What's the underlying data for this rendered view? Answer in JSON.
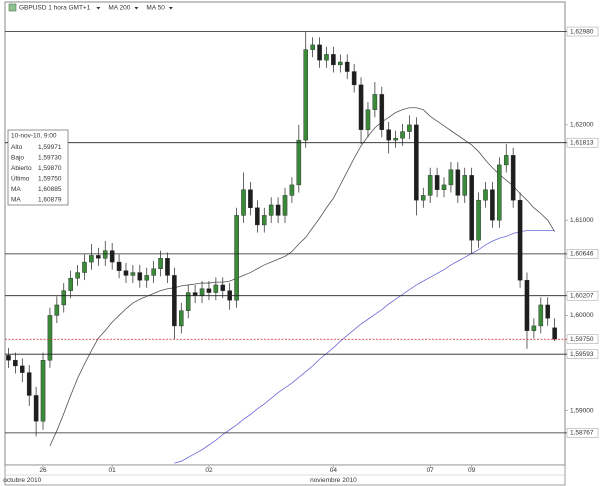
{
  "chart_data": {
    "type": "candlestick",
    "title": "GBPUSD 1 hora GMT+1",
    "ylim": [
      1.5843,
      1.6329
    ],
    "xlim": [
      -0.5,
      80.5
    ],
    "yticks": [
      {
        "value": 1.62,
        "label": "1,62000"
      },
      {
        "value": 1.61,
        "label": "1,61000"
      },
      {
        "value": 1.6,
        "label": "1,60000"
      },
      {
        "value": 1.59,
        "label": "1,59000"
      }
    ],
    "xticks": [
      {
        "value": 5,
        "label": "26"
      },
      {
        "value": 15,
        "label": "01"
      },
      {
        "value": 29,
        "label": "02"
      },
      {
        "value": 47,
        "label": "04"
      },
      {
        "value": 61,
        "label": "07"
      },
      {
        "value": 67,
        "label": "09"
      }
    ],
    "months": [
      {
        "value": 2,
        "label": "octubre 2010"
      },
      {
        "value": 47,
        "label": "noviembre 2010"
      }
    ],
    "levels": [
      {
        "value": 1.6298,
        "label": "1,62980"
      },
      {
        "value": 1.61813,
        "label": "1,61813"
      },
      {
        "value": 1.60646,
        "label": "1,60646"
      },
      {
        "value": 1.60207,
        "label": "1,60207"
      },
      {
        "value": 1.59593,
        "label": "1,59593"
      },
      {
        "value": 1.58767,
        "label": "1,58767"
      }
    ],
    "level_color": "#c0392b",
    "last": {
      "value": 1.5975,
      "label": "1,59750",
      "color": "#2e8b2e",
      "line_color": "#d62020"
    },
    "series": [
      {
        "name": "GBPUSD",
        "up_color": "#3a8a3a",
        "down_color": "#1e1e1e",
        "open": [
          1.5958,
          1.5953,
          1.5947,
          1.594,
          1.5916,
          1.5889,
          1.5953,
          1.6,
          1.6011,
          1.6026,
          1.6039,
          1.6045,
          1.6056,
          1.6063,
          1.606,
          1.6068,
          1.6056,
          1.6047,
          1.6042,
          1.6045,
          1.6037,
          1.6042,
          1.6049,
          1.606,
          1.6042,
          1.5989,
          1.6005,
          1.6024,
          1.6021,
          1.6028,
          1.6024,
          1.6032,
          1.6026,
          1.6016,
          1.6105,
          1.6132,
          1.6113,
          1.6095,
          1.6105,
          1.6116,
          1.6105,
          1.6126,
          1.6137,
          1.6184,
          1.6279,
          1.6284,
          1.6268,
          1.6274,
          1.6263,
          1.6266,
          1.6256,
          1.6242,
          1.6195,
          1.6216,
          1.6232,
          1.6195,
          1.6184,
          1.6186,
          1.6193,
          1.62,
          1.6121,
          1.6126,
          1.6147,
          1.6132,
          1.6137,
          1.6153,
          1.6126,
          1.6147,
          1.6079,
          1.6121,
          1.6132,
          1.61,
          1.6158,
          1.6168,
          1.6121,
          1.6037,
          1.5984,
          1.5989,
          1.6011,
          1.5987
        ],
        "high": [
          1.5966,
          1.5961,
          1.5955,
          1.5948,
          1.5925,
          1.5961,
          1.6008,
          1.602,
          1.6034,
          1.6047,
          1.6053,
          1.6064,
          1.6075,
          1.6071,
          1.6078,
          1.6076,
          1.6064,
          1.6055,
          1.6053,
          1.6053,
          1.605,
          1.6057,
          1.6068,
          1.6066,
          1.605,
          1.6013,
          1.6032,
          1.6032,
          1.6036,
          1.6036,
          1.604,
          1.604,
          1.6034,
          1.6113,
          1.615,
          1.614,
          1.6121,
          1.6113,
          1.6124,
          1.6124,
          1.6134,
          1.6145,
          1.62,
          1.6298,
          1.6292,
          1.6292,
          1.6282,
          1.6282,
          1.6274,
          1.6274,
          1.6264,
          1.625,
          1.6224,
          1.6245,
          1.624,
          1.6203,
          1.6194,
          1.6201,
          1.621,
          1.6208,
          1.6134,
          1.6155,
          1.6155,
          1.6145,
          1.6161,
          1.6161,
          1.6155,
          1.6155,
          1.6129,
          1.614,
          1.614,
          1.6166,
          1.618,
          1.6176,
          1.6129,
          1.6045,
          1.5997,
          1.6019,
          1.6019,
          1.59971
        ],
        "low": [
          1.5945,
          1.5939,
          1.593,
          1.5905,
          1.5873,
          1.588,
          1.5945,
          1.5992,
          1.6003,
          1.6018,
          1.6031,
          1.6037,
          1.6048,
          1.6052,
          1.6052,
          1.6048,
          1.6039,
          1.6034,
          1.6034,
          1.6029,
          1.6029,
          1.6034,
          1.6041,
          1.6034,
          1.5975,
          1.5981,
          1.5997,
          1.6013,
          1.6013,
          1.6016,
          1.6016,
          1.6018,
          1.6006,
          1.6008,
          1.6097,
          1.6105,
          1.6087,
          1.6087,
          1.6097,
          1.6097,
          1.6097,
          1.6118,
          1.6129,
          1.6176,
          1.6271,
          1.626,
          1.626,
          1.6255,
          1.6255,
          1.6248,
          1.6234,
          1.618,
          1.6187,
          1.6208,
          1.6187,
          1.617,
          1.6176,
          1.6178,
          1.6185,
          1.6105,
          1.6113,
          1.6118,
          1.6124,
          1.6124,
          1.6129,
          1.6118,
          1.6118,
          1.6065,
          1.6071,
          1.6113,
          1.6092,
          1.6092,
          1.615,
          1.6113,
          1.6029,
          1.5965,
          1.5976,
          1.5981,
          1.5989,
          1.5973
        ],
        "close": [
          1.5953,
          1.5947,
          1.594,
          1.5916,
          1.5889,
          1.5953,
          1.6,
          1.6011,
          1.6026,
          1.6039,
          1.6045,
          1.6056,
          1.6063,
          1.606,
          1.6068,
          1.6056,
          1.6047,
          1.6042,
          1.6045,
          1.6037,
          1.6042,
          1.6049,
          1.606,
          1.6042,
          1.5989,
          1.6005,
          1.6024,
          1.6021,
          1.6028,
          1.6024,
          1.6032,
          1.6026,
          1.6016,
          1.6105,
          1.6132,
          1.6113,
          1.6095,
          1.6105,
          1.6116,
          1.6105,
          1.6126,
          1.6137,
          1.6184,
          1.6279,
          1.6284,
          1.6268,
          1.6274,
          1.6263,
          1.6266,
          1.6256,
          1.6242,
          1.6195,
          1.6216,
          1.6232,
          1.6195,
          1.6184,
          1.6186,
          1.6193,
          1.62,
          1.6121,
          1.6126,
          1.6147,
          1.6132,
          1.6137,
          1.6153,
          1.6126,
          1.6147,
          1.6079,
          1.6121,
          1.6132,
          1.61,
          1.6158,
          1.6168,
          1.6121,
          1.6037,
          1.5984,
          1.5989,
          1.6011,
          1.5997,
          1.5975
        ]
      }
    ],
    "lines": [
      {
        "name": "MA 200",
        "color": "#6a6ad8",
        "values": [
          null,
          null,
          null,
          null,
          null,
          null,
          null,
          null,
          null,
          null,
          null,
          null,
          null,
          null,
          null,
          null,
          null,
          null,
          null,
          null,
          null,
          null,
          null,
          null,
          1.5845,
          1.5847,
          1.5851,
          1.5855,
          1.5859,
          1.5864,
          1.5869,
          1.5875,
          1.588,
          1.5885,
          1.5891,
          1.5896,
          1.5902,
          1.5907,
          1.5913,
          1.5919,
          1.5924,
          1.5929,
          1.5935,
          1.5941,
          1.5947,
          1.5954,
          1.596,
          1.5966,
          1.5973,
          1.5979,
          1.5985,
          1.5991,
          1.5996,
          1.6001,
          1.6006,
          1.6012,
          1.6017,
          1.6022,
          1.6027,
          1.6032,
          1.6036,
          1.604,
          1.6044,
          1.6048,
          1.6053,
          1.6057,
          1.6061,
          1.6065,
          1.6069,
          1.6074,
          1.6078,
          1.6081,
          1.6083,
          1.6086,
          1.6088,
          1.6089,
          1.6089,
          1.6089,
          1.6089,
          1.6089
        ]
      },
      {
        "name": "MA 50",
        "color": "#555555",
        "values": [
          null,
          null,
          null,
          null,
          null,
          null,
          1.5863,
          1.5879,
          1.5897,
          1.5916,
          1.5934,
          1.5949,
          1.5963,
          1.5976,
          1.5984,
          1.5993,
          1.6,
          1.6007,
          1.6013,
          1.6017,
          1.602,
          1.6023,
          1.6026,
          1.6028,
          1.6029,
          1.6031,
          1.6032,
          1.6033,
          1.6034,
          1.6034,
          1.6035,
          1.6035,
          1.6036,
          1.6039,
          1.6042,
          1.6045,
          1.6049,
          1.6053,
          1.6056,
          1.6059,
          1.6062,
          1.6067,
          1.6075,
          1.6082,
          1.6092,
          1.6102,
          1.6113,
          1.6123,
          1.6137,
          1.6151,
          1.6165,
          1.6178,
          1.6188,
          1.6197,
          1.6203,
          1.6208,
          1.6213,
          1.6216,
          1.6218,
          1.6218,
          1.6216,
          1.6209,
          1.6204,
          1.6199,
          1.6194,
          1.6189,
          1.6184,
          1.6179,
          1.6172,
          1.6163,
          1.6155,
          1.6148,
          1.6142,
          1.6136,
          1.6128,
          1.6121,
          1.6113,
          1.6107,
          1.61,
          1.6088
        ]
      }
    ],
    "info": {
      "date": "10-nov-10, 9:00",
      "rows": [
        {
          "label": "Alto",
          "value": "1,59971",
          "color": "#222222"
        },
        {
          "label": "Bajo",
          "value": "1,59730",
          "color": "#222222"
        },
        {
          "label": "Abierto",
          "value": "1,59870",
          "color": "#222222"
        },
        {
          "label": "Último",
          "value": "1,59750",
          "color": "#2e8b2e"
        },
        {
          "label": "MA",
          "value": "1,60885",
          "color": "#6a6ad8"
        },
        {
          "label": "MA",
          "value": "1,60879",
          "color": "#222222"
        }
      ]
    }
  }
}
